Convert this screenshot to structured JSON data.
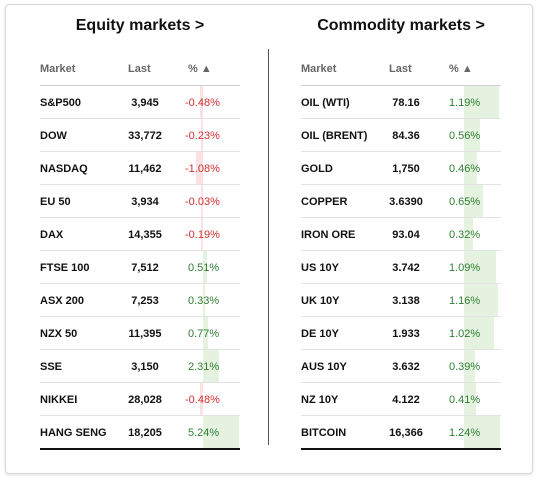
{
  "equity": {
    "title": "Equity markets >",
    "headers": {
      "market": "Market",
      "last": "Last",
      "pct": "% ▲"
    },
    "rows": [
      {
        "name": "S&P500",
        "last": "3,945",
        "pct": "-0.48%",
        "value": -0.48
      },
      {
        "name": "DOW",
        "last": "33,772",
        "pct": "-0.23%",
        "value": -0.23
      },
      {
        "name": "NASDAQ",
        "last": "11,462",
        "pct": "-1.08%",
        "value": -1.08
      },
      {
        "name": "EU 50",
        "last": "3,934",
        "pct": "-0.03%",
        "value": -0.03
      },
      {
        "name": "DAX",
        "last": "14,355",
        "pct": "-0.19%",
        "value": -0.19
      },
      {
        "name": "FTSE 100",
        "last": "7,512",
        "pct": "0.51%",
        "value": 0.51
      },
      {
        "name": "ASX 200",
        "last": "7,253",
        "pct": "0.33%",
        "value": 0.33
      },
      {
        "name": "NZX 50",
        "last": "11,395",
        "pct": "0.77%",
        "value": 0.77
      },
      {
        "name": "SSE",
        "last": "3,150",
        "pct": "2.31%",
        "value": 2.31
      },
      {
        "name": "NIKKEI",
        "last": "28,028",
        "pct": "-0.48%",
        "value": -0.48
      },
      {
        "name": "HANG SENG",
        "last": "18,205",
        "pct": "5.24%",
        "value": 5.24
      }
    ]
  },
  "commodity": {
    "title": "Commodity markets >",
    "headers": {
      "market": "Market",
      "last": "Last",
      "pct": "% ▲"
    },
    "rows": [
      {
        "name": "OIL (WTI)",
        "last": "78.16",
        "pct": "1.19%",
        "value": 1.19
      },
      {
        "name": "OIL (BRENT)",
        "last": "84.36",
        "pct": "0.56%",
        "value": 0.56
      },
      {
        "name": "GOLD",
        "last": "1,750",
        "pct": "0.46%",
        "value": 0.46
      },
      {
        "name": "COPPER",
        "last": "3.6390",
        "pct": "0.65%",
        "value": 0.65
      },
      {
        "name": "IRON ORE",
        "last": "93.04",
        "pct": "0.32%",
        "value": 0.32
      },
      {
        "name": "US 10Y",
        "last": "3.742",
        "pct": "1.09%",
        "value": 1.09
      },
      {
        "name": "UK 10Y",
        "last": "3.138",
        "pct": "1.16%",
        "value": 1.16
      },
      {
        "name": "DE 10Y",
        "last": "1.933",
        "pct": "1.02%",
        "value": 1.02
      },
      {
        "name": "AUS 10Y",
        "last": "3.632",
        "pct": "0.39%",
        "value": 0.39
      },
      {
        "name": "NZ 10Y",
        "last": "4.122",
        "pct": "0.41%",
        "value": 0.41
      },
      {
        "name": "BITCOIN",
        "last": "16,366",
        "pct": "1.24%",
        "value": 1.24
      }
    ]
  },
  "colors": {
    "positive": "#2e7d32",
    "negative": "#d32f2f",
    "positive_bar": "#e4f2df",
    "negative_bar": "#fbe1e1"
  }
}
